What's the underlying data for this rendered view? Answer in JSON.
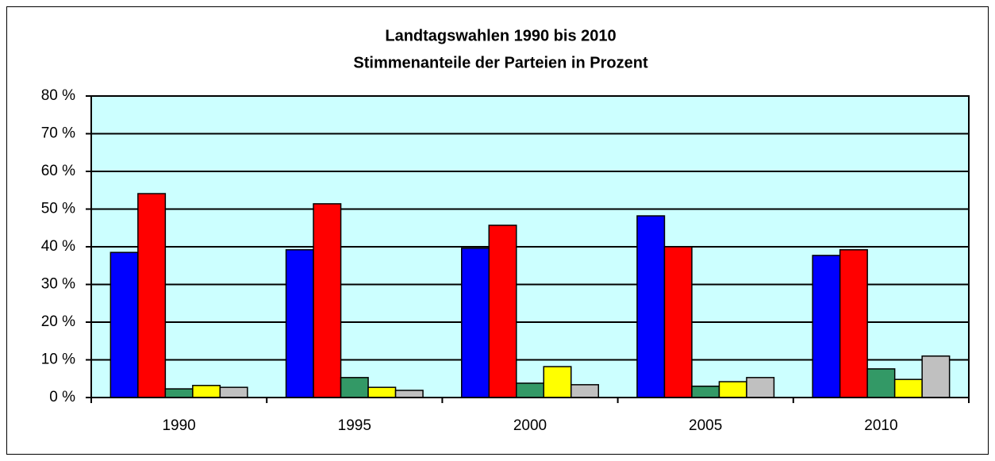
{
  "chart_data": {
    "type": "bar",
    "title": "Landtagswahlen 1990 bis 2010",
    "subtitle": "Stimmenanteile der Parteien in Prozent",
    "categories": [
      "1990",
      "1995",
      "2000",
      "2005",
      "2010"
    ],
    "series": [
      {
        "color": "#0000ff",
        "values": [
          38.5,
          39.2,
          39.6,
          48.2,
          37.7
        ]
      },
      {
        "color": "#ff0000",
        "values": [
          54.1,
          51.4,
          45.7,
          40.0,
          39.2
        ]
      },
      {
        "color": "#339966",
        "values": [
          2.3,
          5.3,
          3.8,
          3.0,
          7.6
        ]
      },
      {
        "color": "#ffff00",
        "values": [
          3.2,
          2.7,
          8.2,
          4.2,
          4.8
        ]
      },
      {
        "color": "#c0c0c0",
        "values": [
          2.7,
          1.9,
          3.4,
          5.3,
          11.0
        ]
      }
    ],
    "ylim": [
      0,
      80
    ],
    "yticks": [
      {
        "value": 0,
        "label": "0 %"
      },
      {
        "value": 10,
        "label": "10 %"
      },
      {
        "value": 20,
        "label": "20 %"
      },
      {
        "value": 30,
        "label": "30 %"
      },
      {
        "value": 40,
        "label": "40 %"
      },
      {
        "value": 50,
        "label": "50 %"
      },
      {
        "value": 60,
        "label": "60 %"
      },
      {
        "value": 70,
        "label": "70 %"
      },
      {
        "value": 80,
        "label": "80 %"
      }
    ],
    "grid": true,
    "plot_background": "#ccffff"
  }
}
